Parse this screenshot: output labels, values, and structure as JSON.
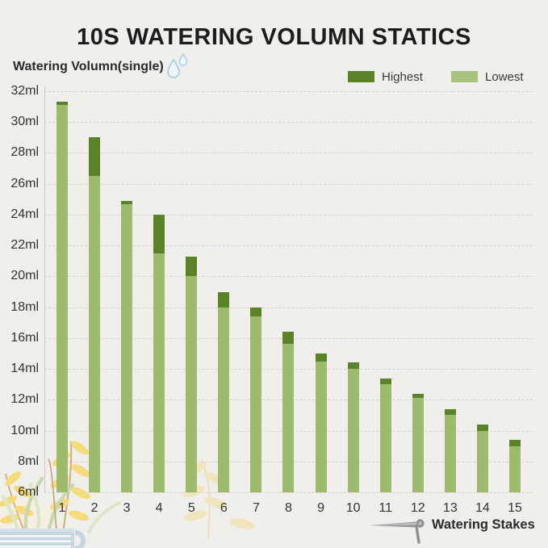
{
  "header": {
    "title": "10S WATERING VOLUMN STATICS"
  },
  "axis_titles": {
    "y": "Watering Volumn(single)",
    "x": "Watering Stakes"
  },
  "icons": {
    "y_title_icon": "water-droplet-icon",
    "x_title_icon": "watering-stake-icon",
    "decoration": "potted-plant-cup-illustration"
  },
  "legend": {
    "position": "top-right",
    "items": [
      {
        "label": "Highest",
        "color": "#5a8228"
      },
      {
        "label": "Lowest",
        "color": "#a8c17c"
      }
    ]
  },
  "colors": {
    "background": "#f0efec",
    "bar_lowest": "#9cbb6d",
    "bar_highest": "#5a8228",
    "gridline": "#d5d4d0",
    "axis_line": "#c6c5c1",
    "text": "#333333",
    "title_text": "#1c1c1c"
  },
  "chart_data": {
    "type": "bar",
    "stacked": true,
    "title": "10S WATERING VOLUMN STATICS",
    "xlabel": "Watering Stakes",
    "ylabel": "Watering Volumn(single)",
    "categories": [
      "1",
      "2",
      "3",
      "4",
      "5",
      "6",
      "7",
      "8",
      "9",
      "10",
      "11",
      "12",
      "13",
      "14",
      "15"
    ],
    "series": [
      {
        "name": "Lowest",
        "color": "#9cbb6d",
        "values": [
          31.1,
          26.5,
          24.7,
          21.5,
          20.0,
          18.0,
          17.4,
          15.6,
          14.5,
          14.0,
          13.0,
          12.1,
          11.0,
          10.0,
          9.0
        ]
      },
      {
        "name": "Highest",
        "color": "#5a8228",
        "values": [
          31.3,
          29.0,
          24.9,
          24.0,
          21.3,
          19.0,
          18.0,
          16.4,
          15.0,
          14.4,
          13.4,
          12.4,
          11.4,
          10.4,
          9.4
        ],
        "meaning": "bar total; dark segment spans from Lowest value up to this value"
      }
    ],
    "ylim": [
      6,
      32
    ],
    "ytick_step": 2,
    "ytick_suffix": "ml",
    "grid": "horizontal-dashed",
    "legend_position": "top-right"
  }
}
